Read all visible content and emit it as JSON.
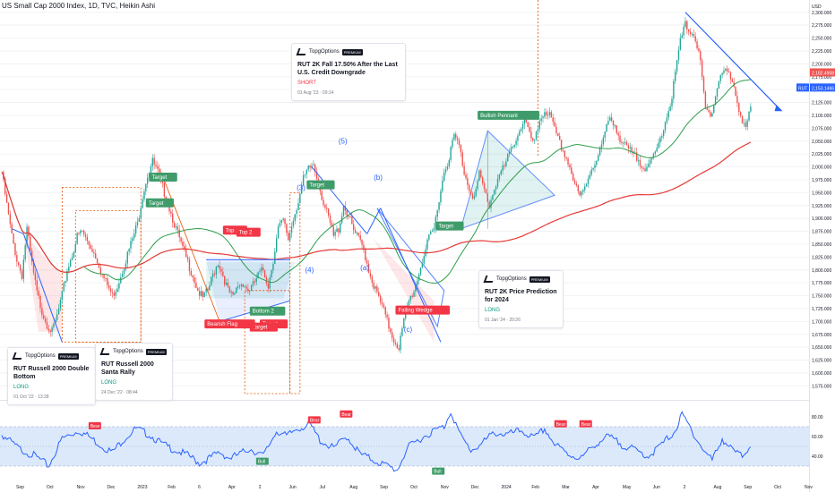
{
  "header": {
    "title": "US Small Cap 2000 Index, 1D, TVC, Heikin Ashi"
  },
  "colors": {
    "up": "#26a69a",
    "down": "#ef5350",
    "ma_fast": "#2e9d4c",
    "ma_slow": "#e53935",
    "rsi": "#2962ff",
    "trend": "#2962ff",
    "target_bg": "#3f9c6a",
    "top_bg": "#f23645",
    "bearish_bg": "#f23645",
    "rsi_band": "#dce9fb"
  },
  "chart_data": {
    "type": "candlestick",
    "title": "US Small Cap 2000 Index, 1D, TVC, Heikin Ashi",
    "currency": "USD",
    "price_axis": {
      "ylim": [
        1560,
        2310
      ],
      "ticks": [
        "2,300.000",
        "2,275.000",
        "2,250.000",
        "2,225.000",
        "2,200.000",
        "2,175.000",
        "2,150.000",
        "2,125.000",
        "2,100.000",
        "2,075.000",
        "2,050.000",
        "2,025.000",
        "2,000.000",
        "1,975.000",
        "1,950.000",
        "1,925.000",
        "1,900.000",
        "1,875.000",
        "1,850.000",
        "1,825.000",
        "1,800.000",
        "1,775.000",
        "1,750.000",
        "1,725.000",
        "1,700.000",
        "1,675.000",
        "1,650.000",
        "1,625.000",
        "1,600.000",
        "1,575.000"
      ],
      "last_price_label": "2,182.4908",
      "symbol_label": "RUT",
      "symbol_price_label": "2,153.1466"
    },
    "time_axis": {
      "labels": [
        "Sep",
        "Oct",
        "Nov",
        "Dec",
        "2023",
        "Feb",
        "6",
        "Apr",
        "2",
        "Jun",
        "Jul",
        "Aug",
        "Sep",
        "Oct",
        "Nov",
        "Dec",
        "2024",
        "Feb",
        "Mar",
        "Apr",
        "May",
        "Jun",
        "2",
        "Aug",
        "Sep",
        "Oct",
        "Nov"
      ]
    },
    "anchors": [
      [
        0,
        1990
      ],
      [
        3,
        1925
      ],
      [
        6,
        1865
      ],
      [
        9,
        1820
      ],
      [
        12,
        1790
      ],
      [
        15,
        1880
      ],
      [
        18,
        1810
      ],
      [
        21,
        1755
      ],
      [
        24,
        1720
      ],
      [
        27,
        1695
      ],
      [
        30,
        1680
      ],
      [
        33,
        1710
      ],
      [
        36,
        1750
      ],
      [
        39,
        1800
      ],
      [
        42,
        1830
      ],
      [
        45,
        1865
      ],
      [
        48,
        1875
      ],
      [
        51,
        1855
      ],
      [
        54,
        1840
      ],
      [
        57,
        1820
      ],
      [
        60,
        1790
      ],
      [
        63,
        1770
      ],
      [
        66,
        1750
      ],
      [
        69,
        1770
      ],
      [
        72,
        1800
      ],
      [
        75,
        1830
      ],
      [
        78,
        1860
      ],
      [
        81,
        1890
      ],
      [
        84,
        1945
      ],
      [
        87,
        1985
      ],
      [
        90,
        2010
      ],
      [
        93,
        1990
      ],
      [
        96,
        1960
      ],
      [
        99,
        1930
      ],
      [
        102,
        1900
      ],
      [
        105,
        1870
      ],
      [
        108,
        1840
      ],
      [
        111,
        1815
      ],
      [
        114,
        1790
      ],
      [
        117,
        1760
      ],
      [
        120,
        1745
      ],
      [
        123,
        1760
      ],
      [
        126,
        1790
      ],
      [
        129,
        1815
      ],
      [
        132,
        1790
      ],
      [
        135,
        1760
      ],
      [
        138,
        1745
      ],
      [
        141,
        1770
      ],
      [
        144,
        1775
      ],
      [
        147,
        1760
      ],
      [
        150,
        1770
      ],
      [
        153,
        1790
      ],
      [
        156,
        1800
      ],
      [
        159,
        1770
      ],
      [
        162,
        1820
      ],
      [
        165,
        1880
      ],
      [
        168,
        1895
      ],
      [
        171,
        1860
      ],
      [
        174,
        1900
      ],
      [
        177,
        1935
      ],
      [
        180,
        1975
      ],
      [
        183,
        1995
      ],
      [
        186,
        2005
      ],
      [
        189,
        1970
      ],
      [
        192,
        1930
      ],
      [
        195,
        1900
      ],
      [
        198,
        1865
      ],
      [
        201,
        1880
      ],
      [
        204,
        1925
      ],
      [
        207,
        1905
      ],
      [
        210,
        1875
      ],
      [
        213,
        1860
      ],
      [
        216,
        1840
      ],
      [
        219,
        1800
      ],
      [
        222,
        1770
      ],
      [
        225,
        1745
      ],
      [
        228,
        1720
      ],
      [
        231,
        1690
      ],
      [
        234,
        1665
      ],
      [
        237,
        1650
      ],
      [
        240,
        1700
      ],
      [
        243,
        1740
      ],
      [
        246,
        1760
      ],
      [
        249,
        1795
      ],
      [
        252,
        1830
      ],
      [
        255,
        1860
      ],
      [
        258,
        1880
      ],
      [
        261,
        1940
      ],
      [
        264,
        1990
      ],
      [
        267,
        2020
      ],
      [
        270,
        2060
      ],
      [
        273,
        2040
      ],
      [
        276,
        1990
      ],
      [
        279,
        1960
      ],
      [
        282,
        1940
      ],
      [
        285,
        1985
      ],
      [
        288,
        1955
      ],
      [
        291,
        1925
      ],
      [
        294,
        1960
      ],
      [
        297,
        1985
      ],
      [
        300,
        2000
      ],
      [
        303,
        2025
      ],
      [
        306,
        2050
      ],
      [
        309,
        2070
      ],
      [
        312,
        2095
      ],
      [
        315,
        2060
      ],
      [
        318,
        2045
      ],
      [
        321,
        2090
      ],
      [
        324,
        2110
      ],
      [
        327,
        2100
      ],
      [
        330,
        2070
      ],
      [
        333,
        2045
      ],
      [
        336,
        2025
      ],
      [
        339,
        2000
      ],
      [
        342,
        1965
      ],
      [
        345,
        1940
      ],
      [
        348,
        1960
      ],
      [
        351,
        1990
      ],
      [
        354,
        2010
      ],
      [
        357,
        2030
      ],
      [
        360,
        2065
      ],
      [
        363,
        2095
      ],
      [
        366,
        2085
      ],
      [
        369,
        2050
      ],
      [
        372,
        2040
      ],
      [
        375,
        2030
      ],
      [
        378,
        2020
      ],
      [
        381,
        2010
      ],
      [
        384,
        2000
      ],
      [
        387,
        2005
      ],
      [
        390,
        2025
      ],
      [
        393,
        2055
      ],
      [
        396,
        2090
      ],
      [
        399,
        2120
      ],
      [
        402,
        2180
      ],
      [
        405,
        2245
      ],
      [
        408,
        2275
      ],
      [
        411,
        2265
      ],
      [
        414,
        2250
      ],
      [
        417,
        2200
      ],
      [
        420,
        2110
      ],
      [
        423,
        2100
      ],
      [
        426,
        2140
      ],
      [
        429,
        2180
      ],
      [
        432,
        2190
      ],
      [
        435,
        2170
      ],
      [
        438,
        2140
      ],
      [
        441,
        2100
      ],
      [
        444,
        2080
      ],
      [
        447,
        2110
      ]
    ],
    "rsi": {
      "ylim": [
        20,
        90
      ],
      "ticks": [
        "80.00",
        "60.00",
        "40.00"
      ],
      "band": [
        30,
        70
      ],
      "mid": 50,
      "anchors": [
        [
          0,
          62
        ],
        [
          10,
          48
        ],
        [
          20,
          40
        ],
        [
          28,
          30
        ],
        [
          36,
          58
        ],
        [
          46,
          66
        ],
        [
          52,
          60
        ],
        [
          60,
          50
        ],
        [
          66,
          44
        ],
        [
          72,
          56
        ],
        [
          80,
          68
        ],
        [
          88,
          62
        ],
        [
          96,
          52
        ],
        [
          104,
          46
        ],
        [
          112,
          40
        ],
        [
          118,
          33
        ],
        [
          124,
          38
        ],
        [
          130,
          44
        ],
        [
          136,
          38
        ],
        [
          142,
          42
        ],
        [
          148,
          48
        ],
        [
          156,
          40
        ],
        [
          164,
          66
        ],
        [
          170,
          60
        ],
        [
          176,
          68
        ],
        [
          184,
          72
        ],
        [
          190,
          56
        ],
        [
          198,
          48
        ],
        [
          206,
          60
        ],
        [
          214,
          42
        ],
        [
          222,
          36
        ],
        [
          230,
          30
        ],
        [
          236,
          26
        ],
        [
          242,
          48
        ],
        [
          250,
          58
        ],
        [
          258,
          66
        ],
        [
          264,
          70
        ],
        [
          268,
          86
        ],
        [
          274,
          60
        ],
        [
          280,
          46
        ],
        [
          286,
          52
        ],
        [
          294,
          64
        ],
        [
          302,
          62
        ],
        [
          310,
          66
        ],
        [
          318,
          58
        ],
        [
          324,
          68
        ],
        [
          330,
          52
        ],
        [
          338,
          42
        ],
        [
          346,
          38
        ],
        [
          354,
          52
        ],
        [
          362,
          60
        ],
        [
          370,
          52
        ],
        [
          378,
          46
        ],
        [
          386,
          40
        ],
        [
          394,
          52
        ],
        [
          402,
          66
        ],
        [
          406,
          82
        ],
        [
          412,
          66
        ],
        [
          418,
          48
        ],
        [
          424,
          36
        ],
        [
          430,
          58
        ],
        [
          436,
          46
        ],
        [
          442,
          40
        ],
        [
          447,
          52
        ]
      ]
    },
    "annotations": [
      "(5)",
      "(b)",
      "(3)",
      "(4)",
      "(a)",
      "(c)",
      "Target",
      "Target",
      "Target",
      "Target",
      "Target",
      "Target",
      "Top 1",
      "Top 2",
      "Bottom 2",
      "Bearish Flag",
      "Falling Wedge",
      "Bullish Pennant",
      "Bull",
      "Bull",
      "Bear",
      "Bear",
      "Bear",
      "Bear",
      "Bear"
    ]
  },
  "ideas": [
    {
      "publisher": "TopgOptions",
      "badge": "PREMIUM",
      "title": "RUT Russell 2000 Double Bottom",
      "direction": "LONG",
      "date": "01 Oct '22 · 13:28"
    },
    {
      "publisher": "TopgOptions",
      "badge": "PREMIUM",
      "title": "RUT Russell 2000 Santa Rally",
      "direction": "LONG",
      "date": "24 Dec '22 · 08:44"
    },
    {
      "publisher": "TopgOptions",
      "badge": "PREMIUM",
      "title": "RUT 2K Fall 17.50% After the Last U.S. Credit Downgrade",
      "direction": "SHORT",
      "date": "01 Aug '23 · 09:14"
    },
    {
      "publisher": "TopgOptions",
      "badge": "PREMIUM",
      "title": "RUT 2K Price Prediction for 2024",
      "direction": "LONG",
      "date": "01 Jan '24 · 20:26"
    }
  ]
}
